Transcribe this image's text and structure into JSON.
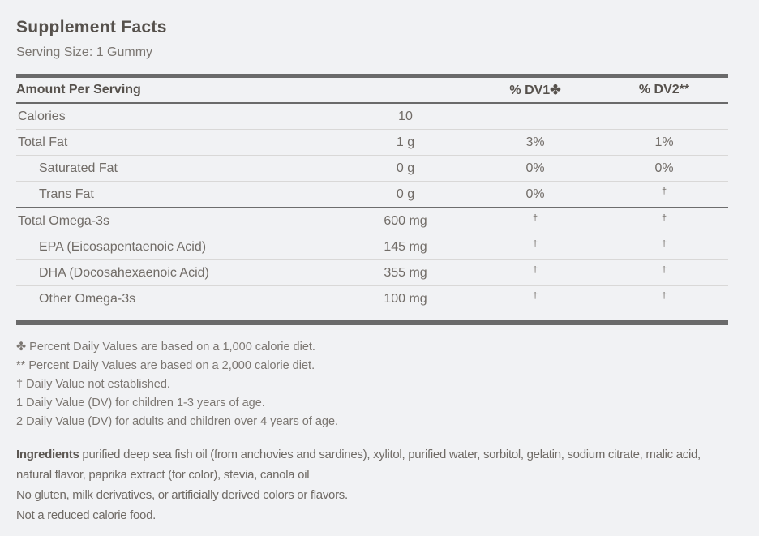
{
  "title": "Supplement Facts",
  "serving_size": "Serving Size: 1 Gummy",
  "table": {
    "header": {
      "col_amount": "Amount Per Serving",
      "col_dv1": "% DV1✤",
      "col_dv2": "% DV2**"
    },
    "rows": [
      {
        "name": "Calories",
        "amount": "10",
        "dv1": "",
        "dv2": "",
        "indent": false,
        "divider_above": false
      },
      {
        "name": "Total Fat",
        "amount": "1 g",
        "dv1": "3%",
        "dv2": "1%",
        "indent": false,
        "divider_above": false
      },
      {
        "name": "Saturated Fat",
        "amount": "0 g",
        "dv1": "0%",
        "dv2": "0%",
        "indent": true,
        "divider_above": false
      },
      {
        "name": "Trans Fat",
        "amount": "0 g",
        "dv1": "0%",
        "dv2": "†",
        "indent": true,
        "divider_above": false
      },
      {
        "name": "Total Omega-3s",
        "amount": "600 mg",
        "dv1": "†",
        "dv2": "†",
        "indent": false,
        "divider_above": true
      },
      {
        "name": "EPA (Eicosapentaenoic Acid)",
        "amount": "145 mg",
        "dv1": "†",
        "dv2": "†",
        "indent": true,
        "divider_above": false
      },
      {
        "name": "DHA (Docosahexaenoic Acid)",
        "amount": "355 mg",
        "dv1": "†",
        "dv2": "†",
        "indent": true,
        "divider_above": false
      },
      {
        "name": "Other Omega-3s",
        "amount": "100 mg",
        "dv1": "†",
        "dv2": "†",
        "indent": true,
        "divider_above": false
      }
    ]
  },
  "footnotes": [
    "✤ Percent Daily Values are based on a 1,000 calorie diet.",
    "** Percent Daily Values are based on a 2,000 calorie diet.",
    "† Daily Value not established.",
    "1 Daily Value (DV) for children 1-3 years of age.",
    "2 Daily Value (DV) for adults and children over 4 years of age."
  ],
  "ingredients": {
    "label": "Ingredients",
    "text": " purified deep sea fish oil (from anchovies and sardines), xylitol, purified water, sorbitol, gelatin, sodium citrate, malic acid, natural flavor, paprika extract (for color), stevia, canola oil"
  },
  "notes": [
    "No gluten, milk derivatives, or artificially derived colors or flavors.",
    "Not a reduced calorie food."
  ],
  "colors": {
    "background": "#f1f2f4",
    "heading_text": "#56514c",
    "body_text": "#75706b",
    "thick_rule": "#6a6a6a",
    "thin_rule": "#d9d8d7"
  }
}
